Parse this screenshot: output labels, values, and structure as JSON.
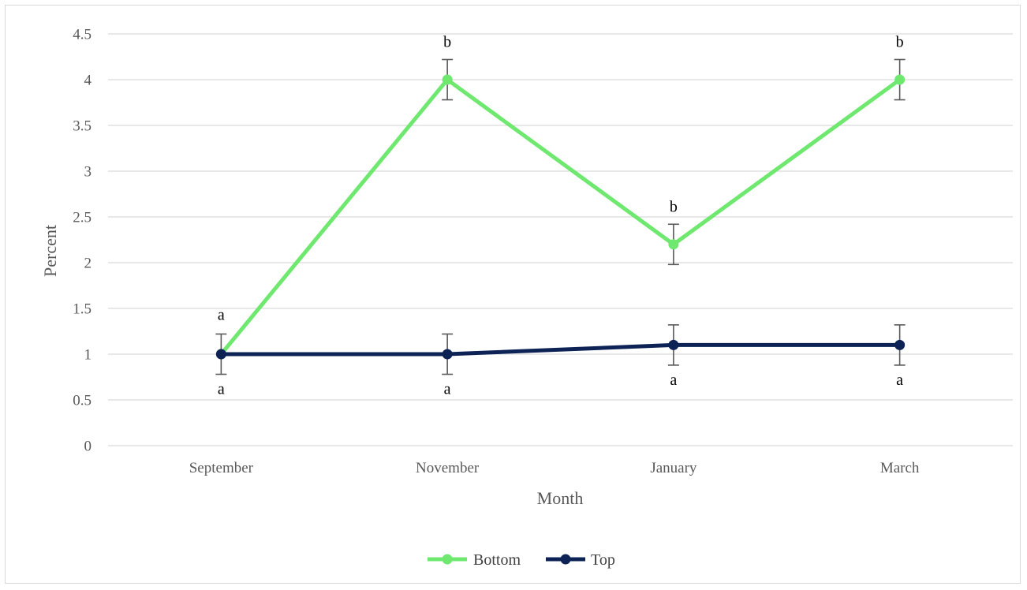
{
  "chart_data": {
    "type": "line",
    "title": "",
    "xlabel": "Month",
    "ylabel": "Percent",
    "categories": [
      "September",
      "November",
      "January",
      "March"
    ],
    "ylim": [
      0,
      4.5
    ],
    "yticks": [
      "0",
      "0.5",
      "1",
      "1.5",
      "2",
      "2.5",
      "3",
      "3.5",
      "4",
      "4.5"
    ],
    "grid": true,
    "legend_position": "bottom",
    "series": [
      {
        "name": "Bottom",
        "color": "#6fe86f",
        "values": [
          1,
          4,
          2.2,
          4
        ],
        "error": [
          null,
          0.22,
          0.22,
          0.22
        ],
        "letters": [
          "a",
          "b",
          "b",
          "b"
        ]
      },
      {
        "name": "Top",
        "color": "#0d2356",
        "values": [
          1,
          1,
          1.1,
          1.1
        ],
        "error": [
          0.22,
          0.22,
          0.22,
          0.22
        ],
        "letters": [
          "a",
          "a",
          "a",
          "a"
        ]
      }
    ]
  }
}
